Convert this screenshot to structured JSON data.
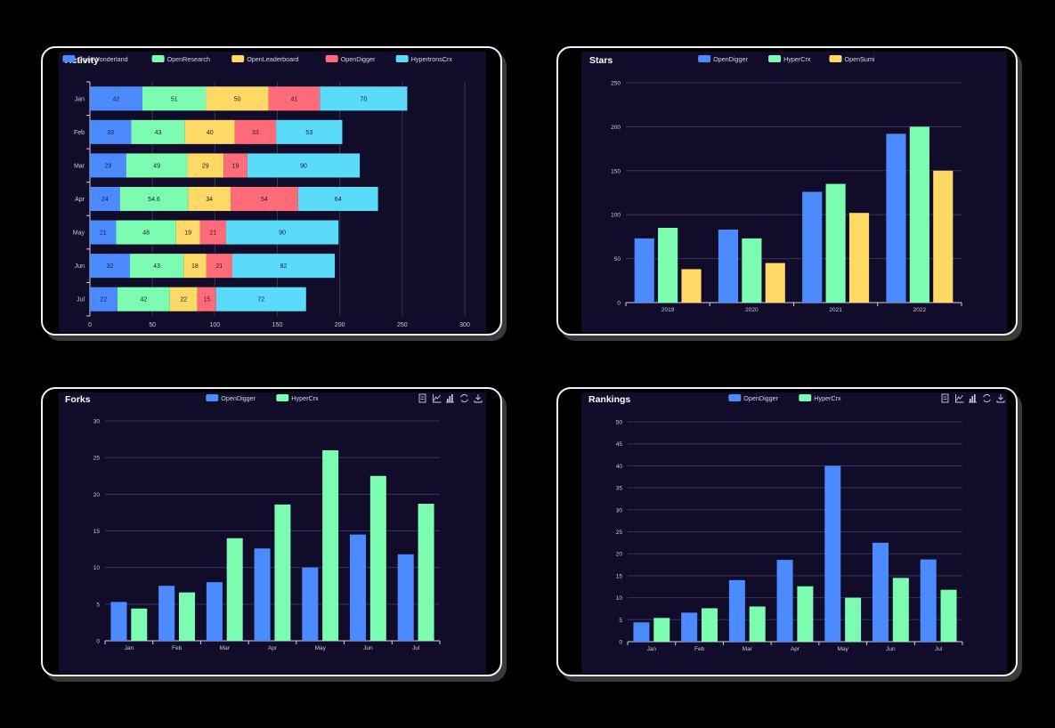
{
  "colors": {
    "blue": "#4b8bff",
    "green": "#7cfcb0",
    "yellow": "#ffd966",
    "red": "#ff6b78",
    "cyan": "#5adbf9",
    "panel": "#110c29",
    "grid": "#34345a"
  },
  "toolbox_icons": [
    "data-view-icon",
    "line-chart-icon",
    "bar-chart-icon",
    "refresh-icon",
    "download-icon"
  ],
  "chart_data": [
    {
      "id": "activity",
      "type": "bar",
      "orientation": "horizontal",
      "stacked": true,
      "title": "Activity",
      "categories": [
        "Jan",
        "Feb",
        "Mar",
        "Apr",
        "May",
        "Jun",
        "Jul"
      ],
      "series": [
        {
          "name": "OpenWonderland",
          "color": "#4b8bff",
          "values": [
            42,
            33,
            29,
            24,
            21,
            32,
            22
          ]
        },
        {
          "name": "OpenResearch",
          "color": "#7cfcb0",
          "values": [
            51,
            43,
            49,
            54.6,
            48,
            43,
            42
          ]
        },
        {
          "name": "OpenLeaderboard",
          "color": "#ffd966",
          "values": [
            50,
            40,
            29,
            34,
            19,
            18,
            22
          ]
        },
        {
          "name": "OpenDigger",
          "color": "#ff6b78",
          "values": [
            41,
            33,
            19,
            54,
            21,
            21,
            15
          ]
        },
        {
          "name": "HypertronsCrx",
          "color": "#5adbf9",
          "values": [
            70,
            53,
            90,
            64,
            90,
            82,
            72
          ]
        }
      ],
      "xlim": [
        0,
        300
      ],
      "xticks": [
        "0",
        "50",
        "100",
        "150",
        "200",
        "250",
        "300"
      ],
      "legend": "top",
      "grid": true,
      "toolbox": false
    },
    {
      "id": "stars",
      "type": "bar",
      "title": "Stars",
      "categories": [
        "2019",
        "2020",
        "2021",
        "2022"
      ],
      "series": [
        {
          "name": "OpenDigger",
          "color": "#4b8bff",
          "values": [
            73,
            83,
            126,
            192
          ]
        },
        {
          "name": "HyperCrx",
          "color": "#7cfcb0",
          "values": [
            85,
            73,
            135,
            200
          ]
        },
        {
          "name": "OpenSumi",
          "color": "#ffd966",
          "values": [
            38,
            45,
            102,
            150
          ]
        }
      ],
      "ylim": [
        0,
        250
      ],
      "yticks": [
        "0",
        "50",
        "100",
        "150",
        "200",
        "250"
      ],
      "legend": "top",
      "grid": true,
      "toolbox": false
    },
    {
      "id": "forks",
      "type": "bar",
      "title": "Forks",
      "categories": [
        "Jan",
        "Feb",
        "Mar",
        "Apr",
        "May",
        "Jun",
        "Jul"
      ],
      "series": [
        {
          "name": "OpenDigger",
          "color": "#4b8bff",
          "values": [
            5.3,
            7.5,
            8,
            12.6,
            10,
            14.5,
            11.8
          ]
        },
        {
          "name": "HyperCrx",
          "color": "#7cfcb0",
          "values": [
            4.4,
            6.6,
            14,
            18.6,
            26,
            22.5,
            18.7
          ]
        }
      ],
      "ylim": [
        0,
        30
      ],
      "yticks": [
        "0",
        "5",
        "10",
        "15",
        "20",
        "25",
        "30"
      ],
      "legend": "top",
      "grid": true,
      "toolbox": true
    },
    {
      "id": "rankings",
      "type": "bar",
      "title": "Rankings",
      "categories": [
        "Jan",
        "Feb",
        "Mar",
        "Apr",
        "May",
        "Jun",
        "Jul"
      ],
      "series": [
        {
          "name": "OpenDigger",
          "color": "#4b8bff",
          "values": [
            4.4,
            6.6,
            14,
            18.6,
            40,
            22.5,
            18.7
          ]
        },
        {
          "name": "HyperCrx",
          "color": "#7cfcb0",
          "values": [
            5.4,
            7.6,
            8,
            12.6,
            10,
            14.5,
            11.8
          ]
        }
      ],
      "ylim": [
        0,
        50
      ],
      "yticks": [
        "0",
        "5",
        "10",
        "15",
        "20",
        "25",
        "30",
        "35",
        "40",
        "45",
        "50"
      ],
      "legend": "top",
      "grid": true,
      "toolbox": true
    }
  ]
}
